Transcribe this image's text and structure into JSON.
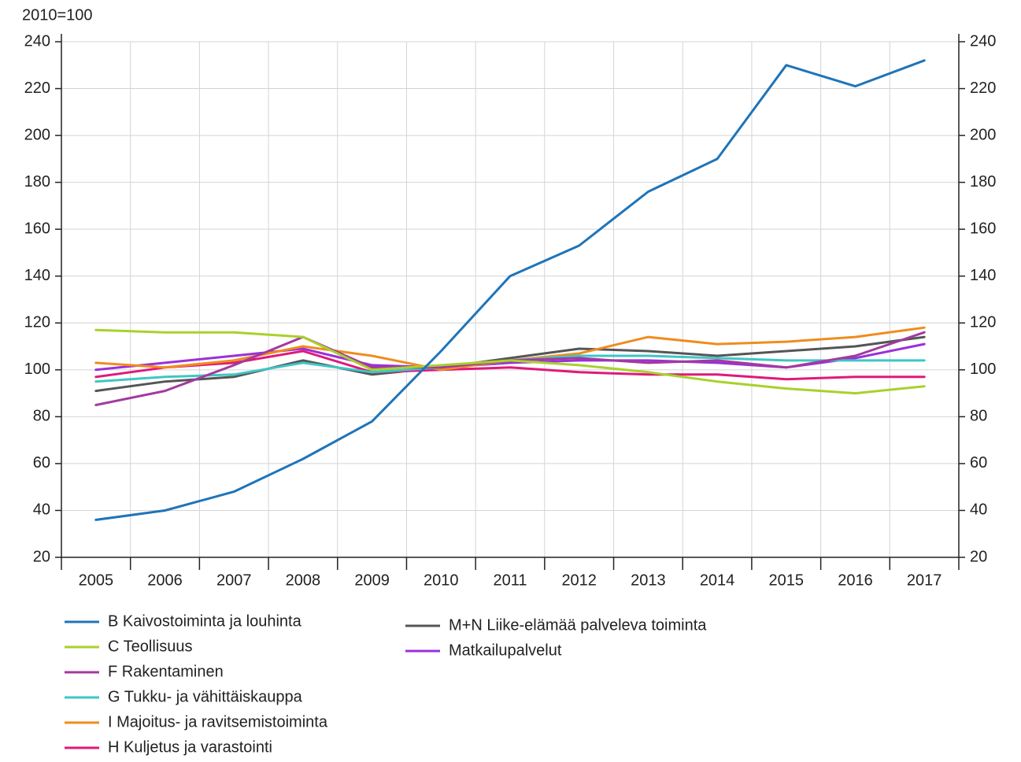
{
  "chart_data": {
    "type": "line",
    "y_label": "2010=100",
    "categories": [
      "2005",
      "2006",
      "2007",
      "2008",
      "2009",
      "2010",
      "2011",
      "2012",
      "2013",
      "2014",
      "2015",
      "2016",
      "2017"
    ],
    "ylim": [
      20,
      240
    ],
    "yticks": [
      20,
      40,
      60,
      80,
      100,
      120,
      140,
      160,
      180,
      200,
      220,
      240
    ],
    "y2lim": [
      20,
      240
    ],
    "y2ticks": [
      20,
      40,
      60,
      80,
      100,
      120,
      140,
      160,
      180,
      200,
      220,
      240
    ],
    "grid": true,
    "legend": "bottom",
    "series": [
      {
        "name": "B Kaivostoiminta ja louhinta",
        "color": "#1f74b8",
        "values": [
          36,
          40,
          48,
          62,
          78,
          108,
          140,
          153,
          176,
          190,
          230,
          221,
          232
        ]
      },
      {
        "name": "C Teollisuus",
        "color": "#a8d12c",
        "values": [
          117,
          116,
          116,
          114,
          100,
          102,
          104,
          102,
          99,
          95,
          92,
          90,
          93
        ]
      },
      {
        "name": "F Rakentaminen",
        "color": "#a33a9e",
        "values": [
          85,
          91,
          102,
          114,
          101,
          101,
          104,
          105,
          103,
          104,
          101,
          106,
          116
        ]
      },
      {
        "name": "G Tukku- ja vähittäiskauppa",
        "color": "#3ec6c6",
        "values": [
          95,
          97,
          98,
          103,
          99,
          101,
          104,
          106,
          106,
          105,
          104,
          104,
          104
        ]
      },
      {
        "name": "I Majoitus- ja ravitsemistoiminta",
        "color": "#f08c1e",
        "values": [
          103,
          101,
          104,
          110,
          106,
          100,
          104,
          107,
          114,
          111,
          112,
          114,
          118
        ]
      },
      {
        "name": "H Kuljetus ja varastointi",
        "color": "#e0197a",
        "values": [
          97,
          101,
          103,
          108,
          99,
          100,
          101,
          99,
          98,
          98,
          96,
          97,
          97
        ]
      },
      {
        "name": "M+N Liike-elämää palveleva toiminta",
        "color": "#555555",
        "values": [
          91,
          95,
          97,
          104,
          98,
          101,
          105,
          109,
          108,
          106,
          108,
          110,
          114
        ]
      },
      {
        "name": "Matkailupalvelut",
        "color": "#9b30d9",
        "values": [
          100,
          103,
          106,
          109,
          102,
          101,
          103,
          104,
          104,
          103,
          101,
          105,
          111
        ]
      }
    ]
  }
}
